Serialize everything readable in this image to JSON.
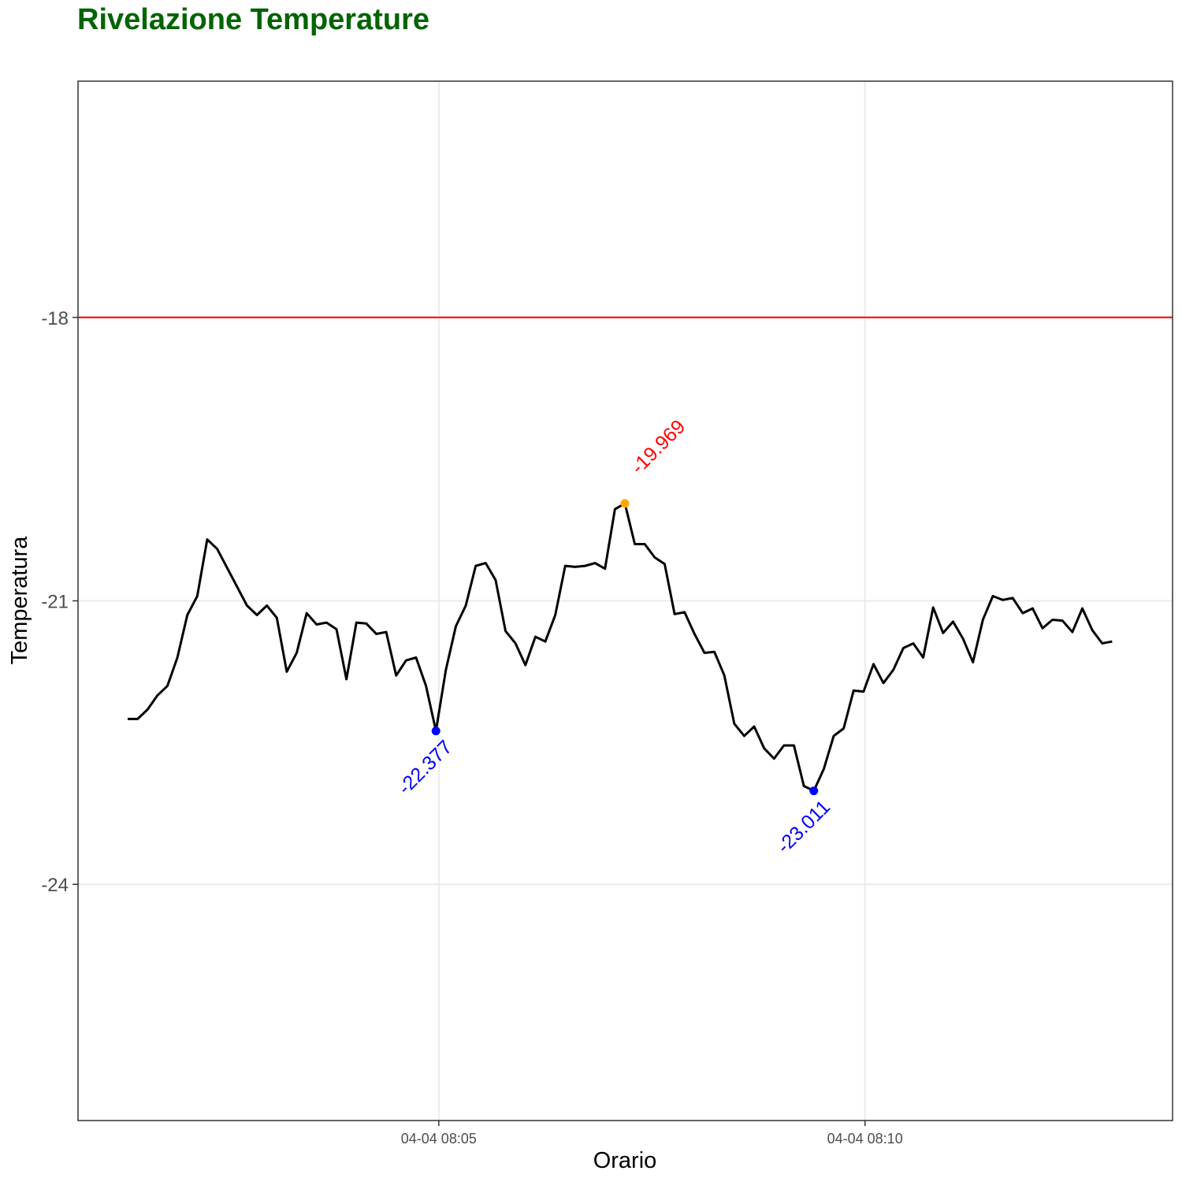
{
  "chart_data": {
    "type": "line",
    "title": "Rivelazione Temperature",
    "xlabel": "Orario",
    "ylabel": "Temperatura",
    "x_start": "04-04 08:01:21",
    "x_step_seconds": 7,
    "x_ticks": [
      {
        "label": "04-04  08:05",
        "time": "08:05:00"
      },
      {
        "label": "04-04  08:10",
        "time": "08:10:00"
      }
    ],
    "y_ticks": [
      {
        "label": "-18",
        "value": -18
      },
      {
        "label": "-21",
        "value": -21
      },
      {
        "label": "-24",
        "value": -24
      }
    ],
    "ylim": [
      -26.5,
      -15.5
    ],
    "grid": true,
    "series": [
      {
        "color": "#000000",
        "values": [
          -22.25,
          -22.25,
          -22.15,
          -22.0,
          -21.9,
          -21.6,
          -21.15,
          -20.95,
          -20.35,
          -20.45,
          -20.65,
          -20.85,
          -21.05,
          -21.15,
          -21.05,
          -21.18,
          -21.75,
          -21.55,
          -21.13,
          -21.25,
          -21.23,
          -21.3,
          -21.83,
          -21.23,
          -21.24,
          -21.35,
          -21.33,
          -21.79,
          -21.63,
          -21.6,
          -21.9,
          -22.377,
          -21.73,
          -21.27,
          -21.05,
          -20.63,
          -20.6,
          -20.78,
          -21.32,
          -21.45,
          -21.68,
          -21.38,
          -21.43,
          -21.15,
          -20.63,
          -20.64,
          -20.63,
          -20.6,
          -20.66,
          -20.03,
          -19.969,
          -20.4,
          -20.4,
          -20.54,
          -20.61,
          -21.14,
          -21.12,
          -21.35,
          -21.55,
          -21.54,
          -21.79,
          -22.3,
          -22.43,
          -22.33,
          -22.56,
          -22.67,
          -22.53,
          -22.53,
          -22.96,
          -23.011,
          -22.78,
          -22.43,
          -22.35,
          -21.95,
          -21.96,
          -21.67,
          -21.87,
          -21.73,
          -21.5,
          -21.45,
          -21.6,
          -21.07,
          -21.34,
          -21.22,
          -21.4,
          -21.65,
          -21.2,
          -20.95,
          -20.99,
          -20.97,
          -21.13,
          -21.08,
          -21.29,
          -21.2,
          -21.21,
          -21.33,
          -21.08,
          -21.31,
          -21.45,
          -21.43
        ]
      }
    ],
    "threshold": {
      "value": -18,
      "color": "#ff0000"
    },
    "annotations": [
      {
        "index": 31,
        "label": "-22.377",
        "point_color": "#0000ff",
        "text_color": "#0000ff",
        "kind": "min"
      },
      {
        "index": 69,
        "label": "-23.011",
        "point_color": "#0000ff",
        "text_color": "#0000ff",
        "kind": "min"
      },
      {
        "index": 50,
        "label": "-19.969",
        "point_color": "#ffa500",
        "text_color": "#ff0000",
        "kind": "max"
      }
    ]
  }
}
